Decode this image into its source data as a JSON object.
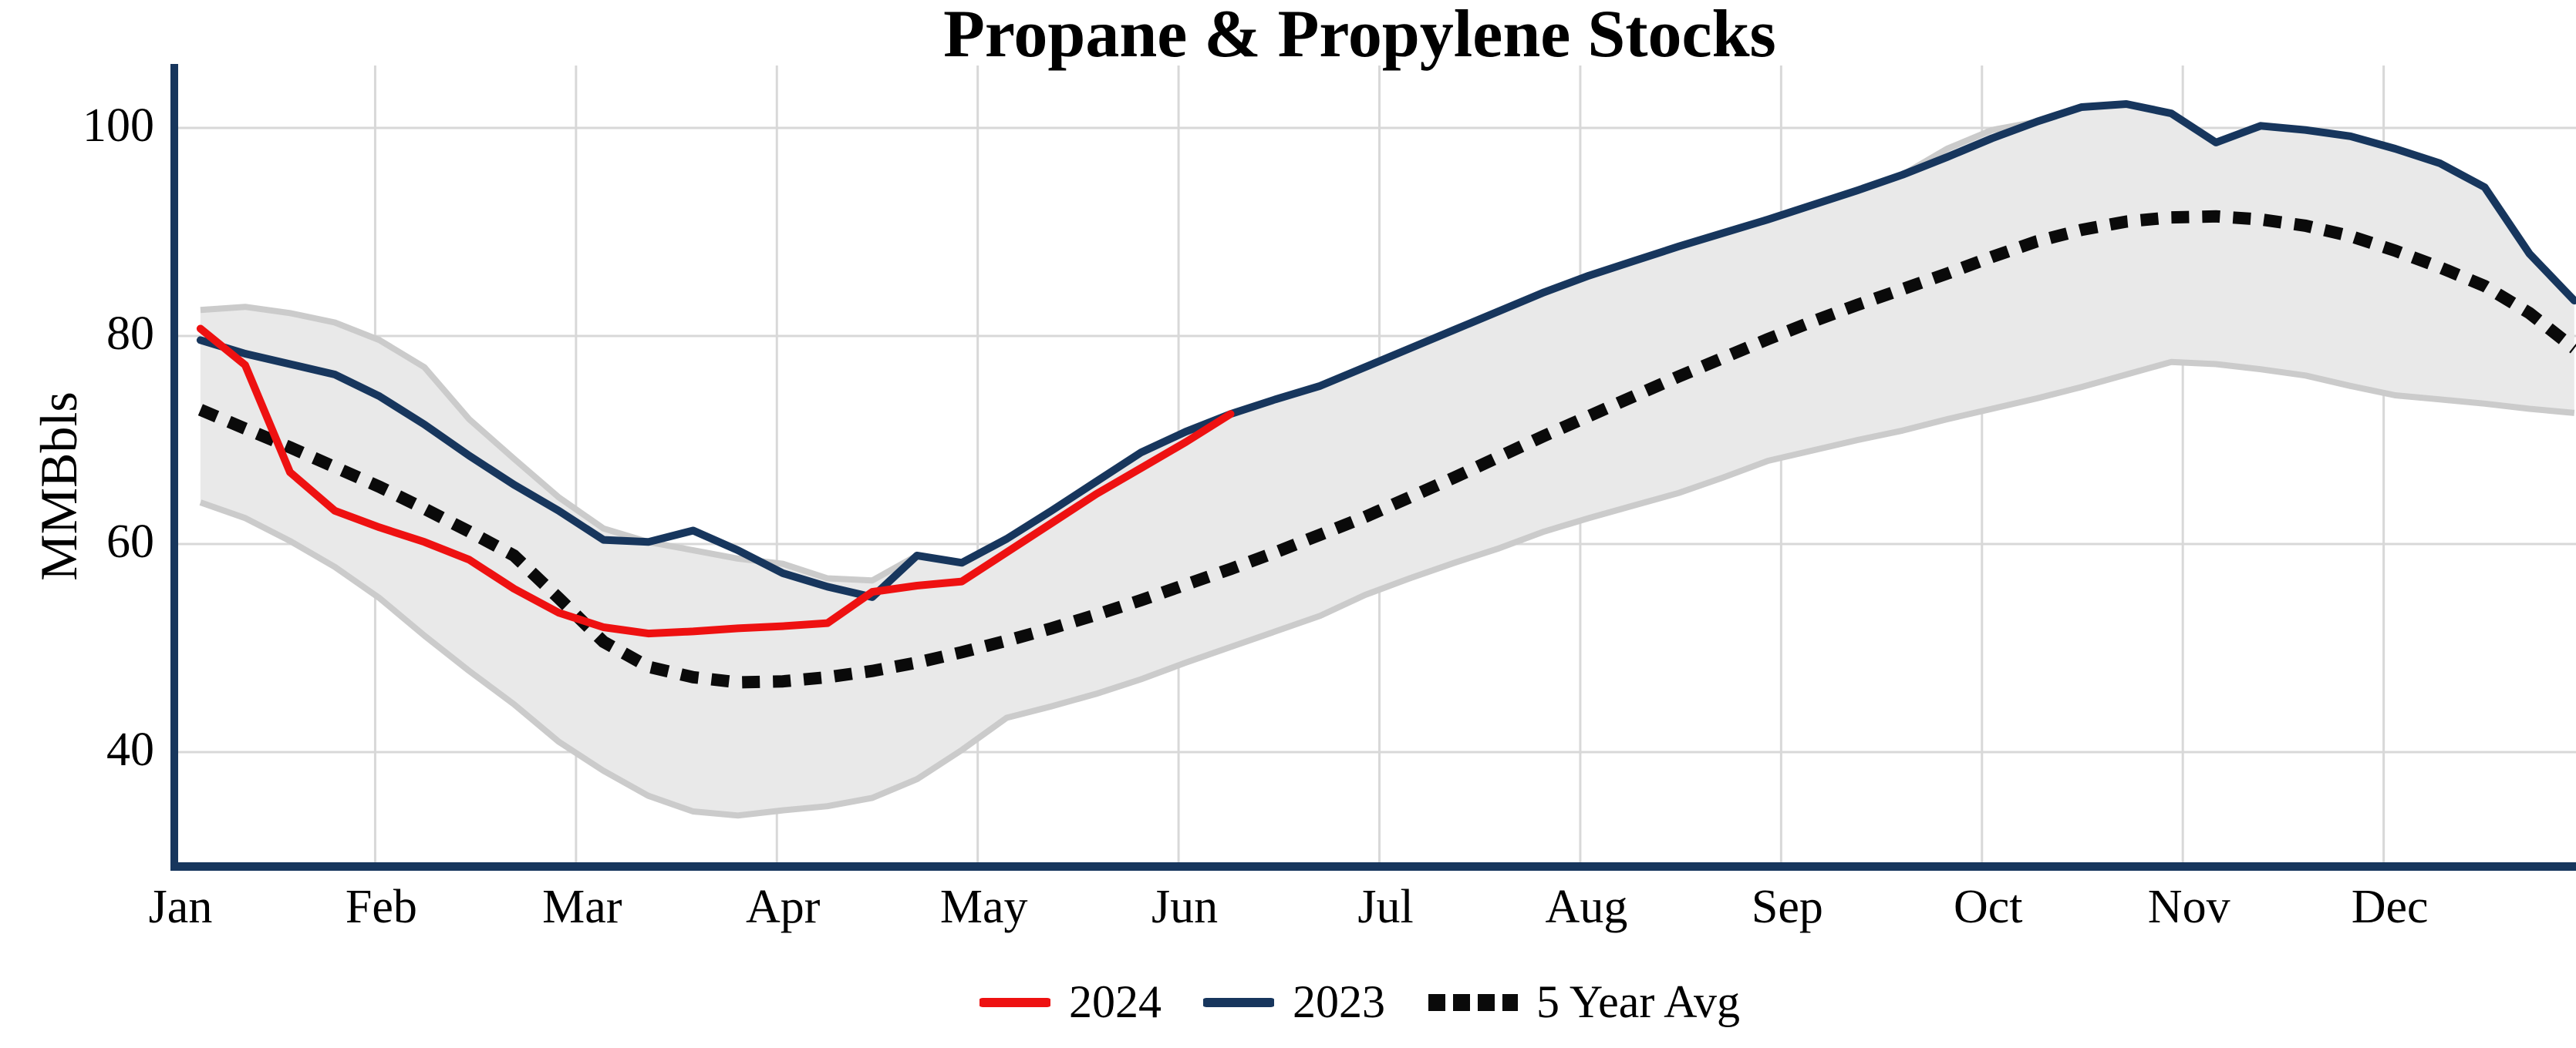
{
  "title": "Propane & Propylene Stocks",
  "ylabel": "MMBbls",
  "legend": {
    "items": [
      {
        "label": "2024",
        "color": "#ee1111",
        "style": "solid"
      },
      {
        "label": "2023",
        "color": "#17365d",
        "style": "solid"
      },
      {
        "label": "5 Year Avg",
        "color": "#0a0a0a",
        "style": "dotted"
      }
    ]
  },
  "colors": {
    "series_2024": "#ee1111",
    "series_2023": "#17365d",
    "five_year_avg": "#0a0a0a",
    "band_fill": "#e9e9e9",
    "band_edge": "#cbcbcb",
    "gridline": "#d8d8d8",
    "axis_spine": "#17365d",
    "background": "#ffffff"
  },
  "chart_data": {
    "type": "line",
    "title": "Propane & Propylene Stocks",
    "xlabel": "",
    "ylabel": "MMBbls",
    "x_categories": [
      "Jan",
      "Feb",
      "Mar",
      "Apr",
      "May",
      "Jun",
      "Jul",
      "Aug",
      "Sep",
      "Oct",
      "Nov",
      "Dec"
    ],
    "yticks": [
      40,
      60,
      80,
      100
    ],
    "ylim": [
      29,
      106
    ],
    "grid": true,
    "legend_position": "bottom-center",
    "x_is_weekly": true,
    "weeks_x_start_month_frac": 0.13,
    "weeks_x_step_month_frac": 0.223,
    "band": {
      "name": "5-year range",
      "top": [
        82.5,
        82.8,
        82.2,
        81.3,
        79.6,
        77.0,
        72.0,
        68.2,
        64.5,
        61.5,
        60.2,
        59.4,
        58.6,
        58.1,
        56.7,
        56.5,
        58.9,
        58.2,
        60.5,
        63.2,
        66.0,
        68.8,
        70.8,
        72.5,
        73.9,
        75.2,
        77.0,
        78.8,
        80.6,
        82.4,
        84.2,
        85.8,
        87.2,
        88.6,
        89.9,
        91.2,
        92.6,
        94.0,
        95.5,
        98.0,
        99.8,
        100.6,
        102.0,
        102.3,
        101.4,
        98.6,
        100.2,
        99.8,
        99.2,
        98.0,
        96.6,
        94.3,
        87.9,
        83.4
      ],
      "bottom": [
        64.0,
        62.5,
        60.3,
        57.8,
        54.8,
        51.2,
        47.8,
        44.6,
        41.0,
        38.2,
        35.8,
        34.3,
        33.9,
        34.4,
        34.8,
        35.6,
        37.4,
        40.2,
        43.3,
        44.4,
        45.6,
        47.0,
        48.6,
        50.1,
        51.6,
        53.1,
        55.1,
        56.7,
        58.2,
        59.6,
        61.2,
        62.5,
        63.7,
        64.9,
        66.4,
        68.0,
        69.0,
        70.0,
        70.9,
        72.0,
        73.0,
        74.0,
        75.1,
        76.3,
        77.5,
        77.3,
        76.8,
        76.2,
        75.2,
        74.3,
        73.9,
        73.5,
        73.0,
        72.6
      ]
    },
    "series": [
      {
        "name": "2024",
        "color": "#ee1111",
        "dash": "solid",
        "values": [
          80.7,
          77.2,
          66.9,
          63.2,
          61.6,
          60.2,
          58.5,
          55.7,
          53.4,
          52.0,
          51.4,
          51.6,
          51.9,
          52.1,
          52.4,
          55.4,
          56.0,
          56.4,
          59.2,
          62.0,
          64.8,
          67.3,
          69.8,
          72.5
        ]
      },
      {
        "name": "2023",
        "color": "#17365d",
        "dash": "solid",
        "values": [
          79.6,
          78.3,
          77.3,
          76.3,
          74.2,
          71.5,
          68.5,
          65.7,
          63.2,
          60.4,
          60.2,
          61.3,
          59.4,
          57.2,
          55.9,
          54.9,
          58.9,
          58.2,
          60.5,
          63.2,
          66.0,
          68.8,
          70.8,
          72.5,
          73.9,
          75.2,
          77.0,
          78.8,
          80.6,
          82.4,
          84.2,
          85.8,
          87.2,
          88.6,
          89.9,
          91.2,
          92.6,
          94.0,
          95.5,
          97.2,
          99.0,
          100.6,
          102.0,
          102.3,
          101.4,
          98.6,
          100.2,
          99.8,
          99.2,
          98.0,
          96.6,
          94.3,
          87.9,
          83.4
        ]
      },
      {
        "name": "5 Year Avg",
        "color": "#0a0a0a",
        "dash": "dotted",
        "values": [
          72.9,
          71.1,
          69.3,
          67.4,
          65.5,
          63.4,
          61.2,
          58.9,
          54.8,
          50.6,
          48.2,
          47.2,
          46.7,
          46.8,
          47.2,
          47.8,
          48.6,
          49.6,
          50.7,
          51.9,
          53.2,
          54.6,
          56.1,
          57.6,
          59.2,
          60.9,
          62.6,
          64.5,
          66.4,
          68.4,
          70.4,
          72.3,
          74.2,
          76.1,
          77.9,
          79.7,
          81.4,
          83.0,
          84.5,
          86.0,
          87.6,
          89.1,
          90.2,
          91.0,
          91.4,
          91.5,
          91.2,
          90.6,
          89.6,
          88.2,
          86.6,
          84.8,
          82.2,
          78.8
        ]
      }
    ]
  }
}
